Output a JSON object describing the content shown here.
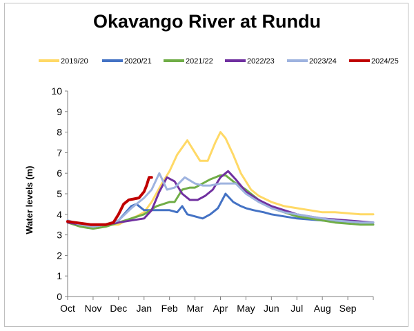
{
  "chart_data": {
    "type": "line",
    "title": "Okavango River at Rundu",
    "xlabel": "",
    "ylabel": "Water levels (m)",
    "ylim": [
      0,
      10
    ],
    "yticks": [
      "0",
      "1",
      "2",
      "3",
      "4",
      "5",
      "6",
      "7",
      "8",
      "9",
      "10"
    ],
    "xlim": [
      0,
      12
    ],
    "month_labels": [
      "Oct",
      "Nov",
      "Dec",
      "Jan",
      "Feb",
      "Mar",
      "Apr",
      "May",
      "Jun",
      "Jul",
      "Aug",
      "Sep"
    ],
    "grid": false,
    "legend_position": "top",
    "series": [
      {
        "name": "2019/20",
        "color": "#ffd966",
        "x": [
          0,
          0.5,
          1,
          1.5,
          2,
          2.3,
          2.7,
          3,
          3.3,
          3.7,
          4,
          4.3,
          4.7,
          5,
          5.2,
          5.5,
          5.8,
          6,
          6.2,
          6.5,
          6.8,
          7,
          7.2,
          7.5,
          8,
          8.5,
          9,
          9.5,
          10,
          10.5,
          11,
          11.5,
          12
        ],
        "y": [
          3.7,
          3.5,
          3.5,
          3.5,
          3.5,
          3.7,
          3.9,
          4.1,
          4.6,
          5.5,
          6.1,
          6.9,
          7.6,
          7.0,
          6.6,
          6.6,
          7.5,
          8.0,
          7.7,
          6.9,
          6.0,
          5.6,
          5.2,
          4.9,
          4.6,
          4.4,
          4.3,
          4.2,
          4.1,
          4.1,
          4.05,
          4.0,
          4.0
        ]
      },
      {
        "name": "2020/21",
        "color": "#4472c4",
        "x": [
          0,
          0.5,
          1,
          1.5,
          2,
          2.5,
          2.7,
          3,
          3.5,
          4,
          4.3,
          4.5,
          4.7,
          5,
          5.3,
          5.6,
          5.9,
          6.2,
          6.5,
          6.8,
          7,
          7.3,
          7.7,
          8,
          8.5,
          9,
          9.5,
          10,
          10.5,
          11,
          11.5,
          12
        ],
        "y": [
          3.7,
          3.5,
          3.4,
          3.5,
          3.7,
          4.4,
          4.5,
          4.2,
          4.2,
          4.2,
          4.1,
          4.4,
          4.0,
          3.9,
          3.8,
          4.0,
          4.3,
          5.0,
          4.6,
          4.4,
          4.3,
          4.2,
          4.1,
          4.0,
          3.9,
          3.8,
          3.75,
          3.7,
          3.65,
          3.65,
          3.6,
          3.6
        ]
      },
      {
        "name": "2021/22",
        "color": "#70ad47",
        "x": [
          0,
          0.5,
          1,
          1.5,
          2,
          2.5,
          3,
          3.5,
          4,
          4.2,
          4.5,
          4.8,
          5,
          5.3,
          5.6,
          6,
          6.2,
          6.5,
          7,
          7.5,
          8,
          8.5,
          9,
          9.5,
          10,
          10.5,
          11,
          11.5,
          12
        ],
        "y": [
          3.6,
          3.4,
          3.3,
          3.4,
          3.6,
          3.8,
          4.0,
          4.4,
          4.6,
          4.6,
          5.2,
          5.3,
          5.3,
          5.5,
          5.7,
          5.9,
          5.9,
          5.6,
          5.2,
          4.7,
          4.3,
          4.1,
          3.9,
          3.8,
          3.7,
          3.6,
          3.55,
          3.5,
          3.5
        ]
      },
      {
        "name": "2022/23",
        "color": "#7030a0",
        "x": [
          0,
          0.5,
          1,
          1.5,
          2,
          2.5,
          3,
          3.3,
          3.6,
          3.9,
          4.2,
          4.5,
          4.8,
          5.1,
          5.4,
          5.7,
          6,
          6.3,
          6.6,
          7,
          7.5,
          8,
          8.5,
          9,
          9.5,
          10,
          10.5,
          11,
          11.5,
          12
        ],
        "y": [
          3.6,
          3.5,
          3.5,
          3.5,
          3.6,
          3.7,
          3.8,
          4.2,
          5.1,
          5.8,
          5.6,
          5.0,
          4.7,
          4.7,
          4.9,
          5.2,
          5.8,
          6.1,
          5.7,
          5.1,
          4.7,
          4.4,
          4.2,
          4.0,
          3.9,
          3.8,
          3.75,
          3.7,
          3.65,
          3.6
        ]
      },
      {
        "name": "2023/24",
        "color": "#9eb3df",
        "x": [
          0,
          0.5,
          1,
          1.5,
          2,
          2.5,
          3,
          3.3,
          3.6,
          3.9,
          4.2,
          4.6,
          5,
          5.3,
          5.6,
          6,
          6.3,
          6.6,
          7,
          7.5,
          8,
          8.5,
          9,
          9.5,
          10,
          10.5,
          11,
          11.5,
          12
        ],
        "y": [
          3.7,
          3.5,
          3.4,
          3.5,
          3.7,
          4.3,
          4.8,
          5.2,
          6.0,
          5.2,
          5.3,
          5.8,
          5.5,
          5.4,
          5.4,
          5.5,
          5.5,
          5.5,
          5.0,
          4.6,
          4.3,
          4.1,
          4.0,
          3.9,
          3.8,
          3.7,
          3.65,
          3.6,
          3.6
        ]
      },
      {
        "name": "2024/25",
        "color": "#c00000",
        "x": [
          0,
          0.3,
          0.6,
          0.9,
          1.2,
          1.5,
          1.8,
          2.0,
          2.2,
          2.4,
          2.6,
          2.8,
          3.0,
          3.1,
          3.2,
          3.3
        ],
        "y": [
          3.65,
          3.6,
          3.55,
          3.5,
          3.5,
          3.5,
          3.6,
          4.0,
          4.5,
          4.7,
          4.75,
          4.8,
          5.1,
          5.4,
          5.8,
          5.8
        ]
      }
    ]
  }
}
